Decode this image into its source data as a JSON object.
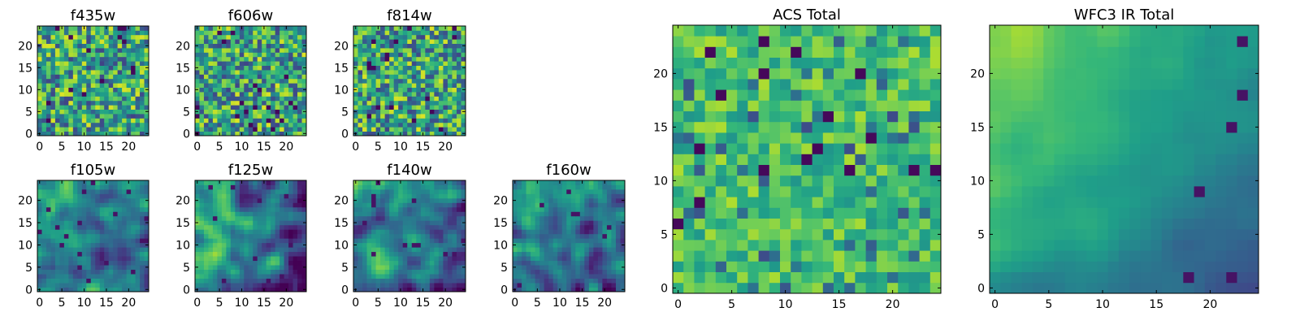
{
  "chart_data": [
    {
      "type": "heatmap",
      "title": "f435w",
      "seed": 11,
      "texture": "noise",
      "pixels": 25,
      "x_ticks": [
        0,
        5,
        10,
        15,
        20
      ],
      "y_ticks": [
        0,
        5,
        10,
        15,
        20
      ],
      "x_range": [
        0,
        24
      ],
      "y_range": [
        0,
        24
      ],
      "colormap": "viridis"
    },
    {
      "type": "heatmap",
      "title": "f606w",
      "seed": 23,
      "texture": "noise",
      "pixels": 25,
      "x_ticks": [
        0,
        5,
        10,
        15,
        20
      ],
      "y_ticks": [
        0,
        5,
        10,
        15,
        20
      ],
      "x_range": [
        0,
        24
      ],
      "y_range": [
        0,
        24
      ],
      "colormap": "viridis"
    },
    {
      "type": "heatmap",
      "title": "f814w",
      "seed": 37,
      "texture": "noise",
      "pixels": 25,
      "x_ticks": [
        0,
        5,
        10,
        15,
        20
      ],
      "y_ticks": [
        0,
        5,
        10,
        15,
        20
      ],
      "x_range": [
        0,
        24
      ],
      "y_range": [
        0,
        24
      ],
      "colormap": "viridis"
    },
    {
      "type": "heatmap",
      "title": "f105w",
      "seed": 41,
      "texture": "smooth",
      "pixels": 25,
      "x_ticks": [
        0,
        5,
        10,
        15,
        20
      ],
      "y_ticks": [
        0,
        5,
        10,
        15,
        20
      ],
      "x_range": [
        0,
        24
      ],
      "y_range": [
        0,
        24
      ],
      "colormap": "viridis"
    },
    {
      "type": "heatmap",
      "title": "f125w",
      "seed": 53,
      "texture": "smooth",
      "pixels": 25,
      "x_ticks": [
        0,
        5,
        10,
        15,
        20
      ],
      "y_ticks": [
        0,
        5,
        10,
        15,
        20
      ],
      "x_range": [
        0,
        24
      ],
      "y_range": [
        0,
        24
      ],
      "colormap": "viridis"
    },
    {
      "type": "heatmap",
      "title": "f140w",
      "seed": 67,
      "texture": "smooth",
      "pixels": 25,
      "x_ticks": [
        0,
        5,
        10,
        15,
        20
      ],
      "y_ticks": [
        0,
        5,
        10,
        15,
        20
      ],
      "x_range": [
        0,
        24
      ],
      "y_range": [
        0,
        24
      ],
      "colormap": "viridis"
    },
    {
      "type": "heatmap",
      "title": "f160w",
      "seed": 79,
      "texture": "smooth",
      "pixels": 25,
      "x_ticks": [
        0,
        5,
        10,
        15,
        20
      ],
      "y_ticks": [
        0,
        5,
        10,
        15,
        20
      ],
      "x_range": [
        0,
        24
      ],
      "y_range": [
        0,
        24
      ],
      "colormap": "viridis"
    },
    {
      "type": "heatmap",
      "title": "ACS Total",
      "seed": 83,
      "texture": "acs",
      "pixels": 25,
      "x_ticks": [
        0,
        5,
        10,
        15,
        20
      ],
      "y_ticks": [
        0,
        5,
        10,
        15,
        20
      ],
      "x_range": [
        0,
        24
      ],
      "y_range": [
        0,
        24
      ],
      "colormap": "viridis"
    },
    {
      "type": "heatmap",
      "title": "WFC3 IR Total",
      "seed": 97,
      "texture": "ir",
      "pixels": 25,
      "x_ticks": [
        0,
        5,
        10,
        15,
        20
      ],
      "y_ticks": [
        0,
        5,
        10,
        15,
        20
      ],
      "x_range": [
        0,
        24
      ],
      "y_range": [
        0,
        24
      ],
      "colormap": "viridis"
    }
  ]
}
